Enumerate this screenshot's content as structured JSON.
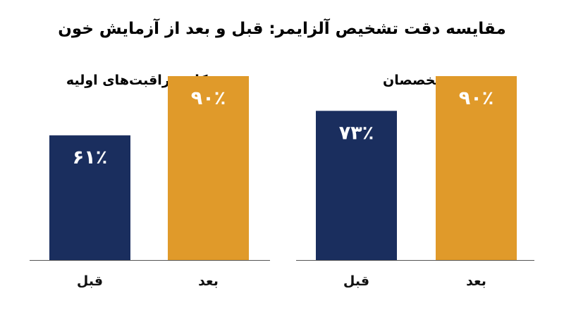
{
  "chart_data": {
    "type": "bar",
    "title": "مقایسه دقت تشخیص آلزایمر: قبل و بعد از آزمایش خون",
    "ylim": [
      0,
      100
    ],
    "grid": false,
    "colors": {
      "before": "#1a2e5e",
      "after": "#e09a2a",
      "axis": "#555555"
    },
    "panels": [
      {
        "title": "پزشکان مراقبت‌های اولیه",
        "categories": [
          "قبل",
          "بعد"
        ],
        "values": [
          61,
          90
        ],
        "value_labels": [
          "۶۱٪",
          "۹۰٪"
        ]
      },
      {
        "title": "متخصصان",
        "categories": [
          "قبل",
          "بعد"
        ],
        "values": [
          73,
          90
        ],
        "value_labels": [
          "۷۳٪",
          "۹۰٪"
        ]
      }
    ]
  }
}
